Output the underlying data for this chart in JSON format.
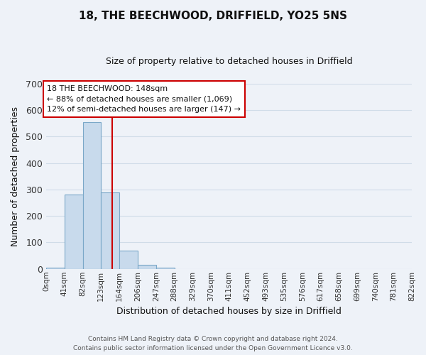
{
  "title": "18, THE BEECHWOOD, DRIFFIELD, YO25 5NS",
  "subtitle": "Size of property relative to detached houses in Driffield",
  "xlabel": "Distribution of detached houses by size in Driffield",
  "ylabel": "Number of detached properties",
  "bin_edges": [
    0,
    41,
    82,
    123,
    164,
    206,
    247,
    288,
    329,
    370,
    411,
    452,
    493,
    535,
    576,
    617,
    658,
    699,
    740,
    781,
    822
  ],
  "bin_labels": [
    "0sqm",
    "41sqm",
    "82sqm",
    "123sqm",
    "164sqm",
    "206sqm",
    "247sqm",
    "288sqm",
    "329sqm",
    "370sqm",
    "411sqm",
    "452sqm",
    "493sqm",
    "535sqm",
    "576sqm",
    "617sqm",
    "658sqm",
    "699sqm",
    "740sqm",
    "781sqm",
    "822sqm"
  ],
  "counts": [
    5,
    280,
    555,
    290,
    68,
    15,
    5,
    0,
    0,
    0,
    0,
    0,
    0,
    0,
    0,
    0,
    0,
    0,
    0,
    0
  ],
  "bar_color": "#c8daec",
  "bar_edge_color": "#7ba8c8",
  "vline_x": 148,
  "vline_color": "#cc0000",
  "ylim": [
    0,
    700
  ],
  "yticks": [
    0,
    100,
    200,
    300,
    400,
    500,
    600,
    700
  ],
  "annotation_title": "18 THE BEECHWOOD: 148sqm",
  "annotation_line1": "← 88% of detached houses are smaller (1,069)",
  "annotation_line2": "12% of semi-detached houses are larger (147) →",
  "annotation_box_color": "white",
  "annotation_box_edge_color": "#cc0000",
  "footer1": "Contains HM Land Registry data © Crown copyright and database right 2024.",
  "footer2": "Contains public sector information licensed under the Open Government Licence v3.0.",
  "fig_bg_color": "#eef2f8",
  "plot_bg_color": "#eef2f8",
  "grid_color": "#d0dce8"
}
